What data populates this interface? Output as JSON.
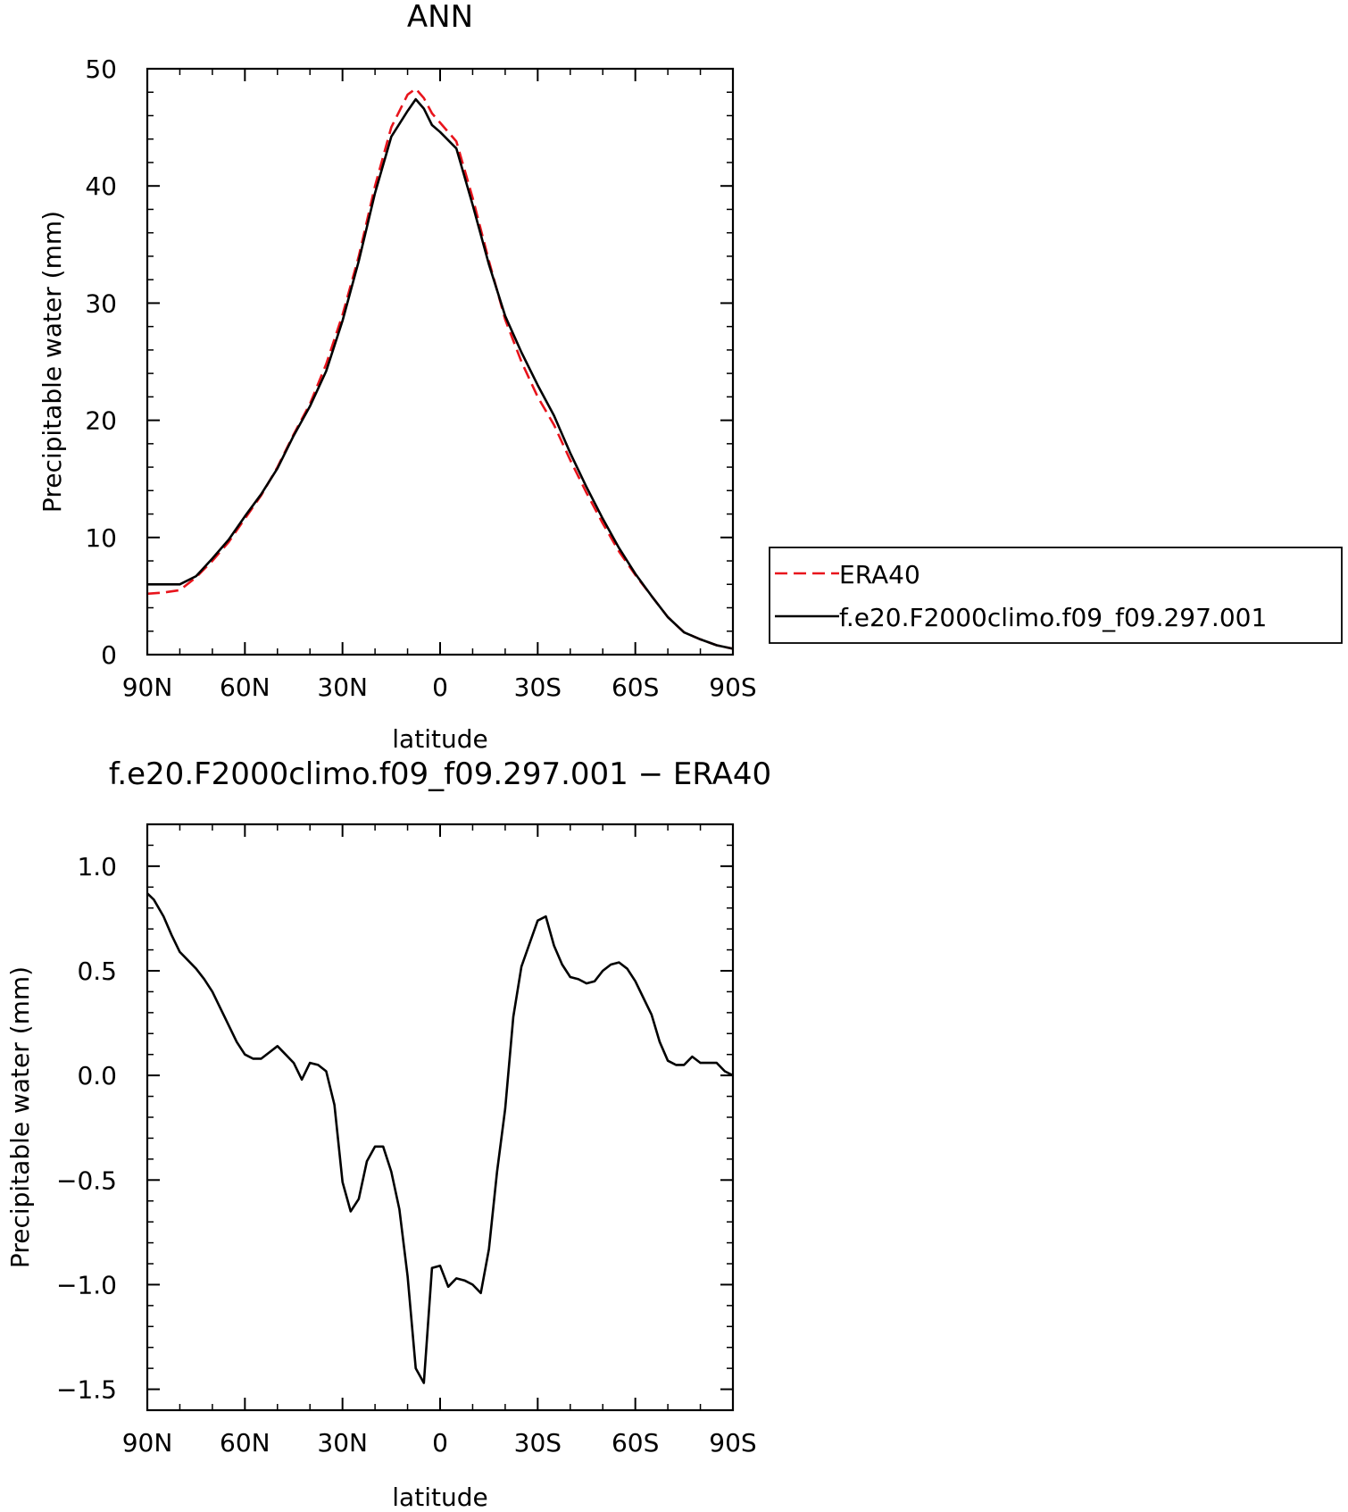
{
  "chart_data": [
    {
      "type": "line",
      "title": "ANN",
      "xlabel": "latitude",
      "ylabel": "Precipitable water (mm)",
      "xlim": [
        90,
        -90
      ],
      "ylim": [
        0,
        50
      ],
      "xticks": [
        {
          "value": 90,
          "label": "90N"
        },
        {
          "value": 60,
          "label": "60N"
        },
        {
          "value": 30,
          "label": "30N"
        },
        {
          "value": 0,
          "label": "0"
        },
        {
          "value": -30,
          "label": "30S"
        },
        {
          "value": -60,
          "label": "60S"
        },
        {
          "value": -90,
          "label": "90S"
        }
      ],
      "yticks": [
        {
          "value": 0,
          "label": "0"
        },
        {
          "value": 10,
          "label": "10"
        },
        {
          "value": 20,
          "label": "20"
        },
        {
          "value": 30,
          "label": "30"
        },
        {
          "value": 40,
          "label": "40"
        },
        {
          "value": 50,
          "label": "50"
        }
      ],
      "legend": {
        "placement": "right"
      },
      "series": [
        {
          "name": "ERA40",
          "color": "#e8141c",
          "dash": true,
          "x": [
            90,
            85,
            80,
            75,
            70,
            65,
            60,
            55,
            50,
            45,
            40,
            35,
            30,
            25,
            20,
            15,
            10,
            7.5,
            5,
            2.5,
            0,
            -5,
            -10,
            -15,
            -20,
            -25,
            -30,
            -35,
            -40,
            -45,
            -50,
            -55,
            -60,
            -65,
            -70,
            -75,
            -80,
            -85,
            -90
          ],
          "y": [
            5.2,
            5.3,
            5.5,
            6.6,
            8.0,
            9.6,
            11.6,
            13.6,
            16.0,
            18.8,
            21.4,
            24.8,
            29.0,
            34.0,
            40.0,
            45.0,
            47.8,
            48.3,
            47.5,
            46.2,
            45.4,
            43.8,
            39.0,
            33.6,
            28.6,
            25.0,
            22.0,
            19.6,
            16.6,
            13.8,
            11.2,
            8.8,
            6.8,
            5.0,
            3.2,
            1.9,
            1.3,
            0.8,
            0.5
          ]
        },
        {
          "name": "f.e20.F2000climo.f09_f09.297.001",
          "color": "#000000",
          "dash": false,
          "x": [
            90,
            85,
            80,
            75,
            70,
            65,
            60,
            55,
            50,
            45,
            40,
            35,
            30,
            25,
            20,
            15,
            10,
            7.5,
            5,
            2.5,
            0,
            -5,
            -10,
            -15,
            -20,
            -25,
            -30,
            -35,
            -40,
            -45,
            -50,
            -55,
            -60,
            -65,
            -70,
            -75,
            -80,
            -85,
            -90
          ],
          "y": [
            6.0,
            6.0,
            6.0,
            6.7,
            8.2,
            9.8,
            11.8,
            13.7,
            15.9,
            18.7,
            21.2,
            24.2,
            28.5,
            33.6,
            39.4,
            44.2,
            46.4,
            47.4,
            46.6,
            45.2,
            44.6,
            43.2,
            38.4,
            33.3,
            28.9,
            25.8,
            23.0,
            20.4,
            17.2,
            14.3,
            11.6,
            9.1,
            6.9,
            5.0,
            3.2,
            1.9,
            1.3,
            0.8,
            0.5
          ]
        }
      ]
    },
    {
      "type": "line",
      "title": "f.e20.F2000climo.f09_f09.297.001 − ERA40",
      "xlabel": "latitude",
      "ylabel": "Precipitable water (mm)",
      "xlim": [
        90,
        -90
      ],
      "ylim": [
        -1.6,
        1.2
      ],
      "xticks": [
        {
          "value": 90,
          "label": "90N"
        },
        {
          "value": 60,
          "label": "60N"
        },
        {
          "value": 30,
          "label": "30N"
        },
        {
          "value": 0,
          "label": "0"
        },
        {
          "value": -30,
          "label": "30S"
        },
        {
          "value": -60,
          "label": "60S"
        },
        {
          "value": -90,
          "label": "90S"
        }
      ],
      "yticks": [
        {
          "value": -1.5,
          "label": "−1.5"
        },
        {
          "value": -1.0,
          "label": "−1.0"
        },
        {
          "value": -0.5,
          "label": "−0.5"
        },
        {
          "value": 0.0,
          "label": "0.0"
        },
        {
          "value": 0.5,
          "label": "0.5"
        },
        {
          "value": 1.0,
          "label": "1.0"
        }
      ],
      "series": [
        {
          "color": "#000000",
          "x": [
            90,
            88,
            85,
            82.5,
            80,
            77.5,
            75,
            72.5,
            70,
            67.5,
            65,
            62.5,
            60,
            57.5,
            55,
            52.5,
            50,
            47.5,
            45,
            42.5,
            40,
            37.5,
            35,
            32.5,
            30,
            27.5,
            25,
            22.5,
            20,
            17.5,
            15,
            12.5,
            10,
            7.5,
            5,
            2.5,
            0,
            -2.5,
            -5,
            -7.5,
            -10,
            -12.5,
            -15,
            -17.5,
            -20,
            -22.5,
            -25,
            -27.5,
            -30,
            -32.5,
            -35,
            -37.5,
            -40,
            -42.5,
            -45,
            -47.5,
            -50,
            -52.5,
            -55,
            -57.5,
            -60,
            -62.5,
            -65,
            -67.5,
            -70,
            -72.5,
            -75,
            -77.5,
            -80,
            -82.5,
            -85,
            -87.5,
            -90
          ],
          "y": [
            0.87,
            0.84,
            0.76,
            0.67,
            0.59,
            0.55,
            0.51,
            0.46,
            0.4,
            0.32,
            0.24,
            0.16,
            0.1,
            0.08,
            0.08,
            0.11,
            0.14,
            0.1,
            0.06,
            -0.02,
            0.06,
            0.05,
            0.02,
            -0.14,
            -0.51,
            -0.65,
            -0.59,
            -0.41,
            -0.34,
            -0.34,
            -0.46,
            -0.64,
            -0.96,
            -1.4,
            -1.47,
            -0.92,
            -0.91,
            -1.01,
            -0.97,
            -0.98,
            -1.0,
            -1.04,
            -0.83,
            -0.46,
            -0.16,
            0.28,
            0.52,
            0.63,
            0.74,
            0.76,
            0.62,
            0.53,
            0.47,
            0.46,
            0.44,
            0.45,
            0.5,
            0.53,
            0.54,
            0.51,
            0.45,
            0.37,
            0.29,
            0.16,
            0.07,
            0.05,
            0.05,
            0.09,
            0.06,
            0.06,
            0.06,
            0.02,
            0.0
          ]
        }
      ]
    }
  ]
}
